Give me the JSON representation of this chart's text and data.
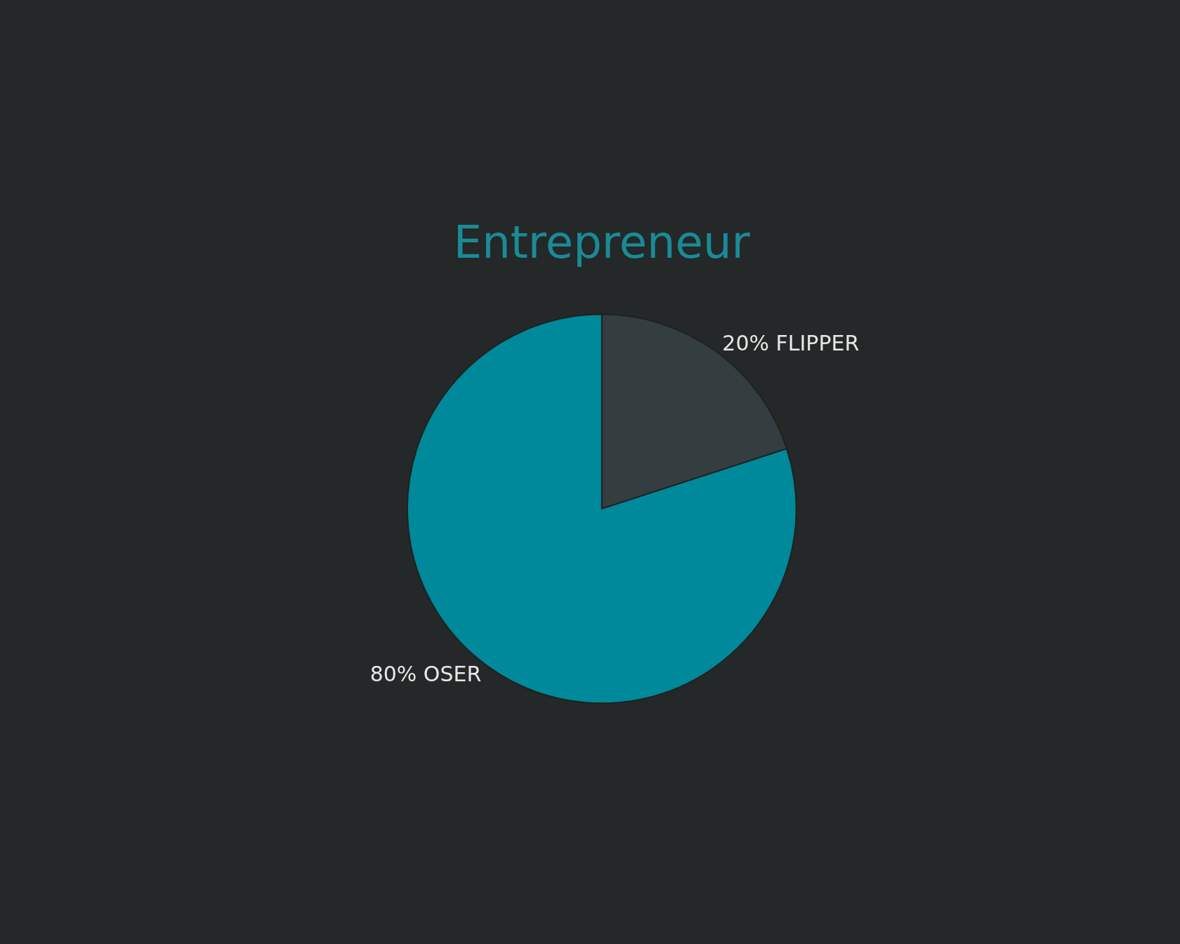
{
  "chart_data": {
    "type": "pie",
    "title": "Entrepreneur",
    "categories": [
      "FLIPPER",
      "OSER"
    ],
    "values": [
      20,
      80
    ],
    "value_labels": [
      "20%",
      "80%"
    ],
    "colors": [
      "#343d3f",
      "#00899a"
    ],
    "legend": false
  }
}
